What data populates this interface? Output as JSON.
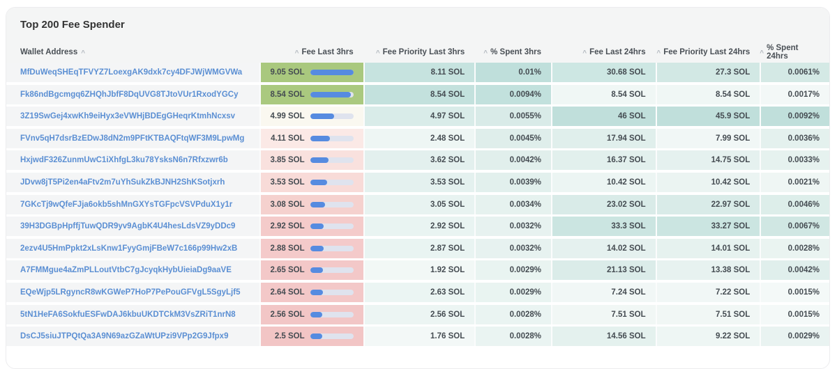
{
  "card": {
    "title": "Top 200 Fee Spender"
  },
  "sort_icon": "^",
  "colors": {
    "accent_bar_fill": "#568be0",
    "bar_track": "#dfe3ee",
    "wallet_link": "#5b8fd3",
    "header_text": "#4a5056",
    "value_text": "#454c52",
    "positive_green": "#a9c87e",
    "negative_red": "#f2c5c5",
    "teal_high": "#bfdfdb",
    "card_head_bg": "#f4f5f5"
  },
  "table": {
    "columns": [
      {
        "label": "Wallet Address"
      },
      {
        "label": "Fee Last 3hrs"
      },
      {
        "label": "Fee Priority Last 3hrs"
      },
      {
        "label": "% Spent 3hrs"
      },
      {
        "label": "Fee Last 24hrs"
      },
      {
        "label": "Fee Priority Last 24hrs"
      },
      {
        "label": "% Spent 24hrs"
      }
    ],
    "rows": [
      {
        "wallet": "MfDuWeqSHEqTFVYZ7LoexgAK9dxk7cy4DFJWjWMGVWa",
        "fee3": {
          "text": "9.05 SOL",
          "bg": "#a9c87e",
          "bar": 100
        },
        "fp3": {
          "text": "8.11 SOL",
          "bg": "#c6e3df"
        },
        "pct3": {
          "text": "0.01%",
          "bg": "#bfdfdb"
        },
        "fee24": {
          "text": "30.68 SOL",
          "bg": "#cde7e3"
        },
        "fp24": {
          "text": "27.3 SOL",
          "bg": "#d2e8e4"
        },
        "pct24": {
          "text": "0.0061%",
          "bg": "#d4e9e5"
        }
      },
      {
        "wallet": "Fk86ndBgcmgq6ZHQhJbfF8DqUVG8TJtoVUr1RxodYGCy",
        "fee3": {
          "text": "8.54 SOL",
          "bg": "#aac97f",
          "bar": 94
        },
        "fp3": {
          "text": "8.54 SOL",
          "bg": "#c3e1dd"
        },
        "pct3": {
          "text": "0.0094%",
          "bg": "#c2e1dd"
        },
        "fee24": {
          "text": "8.54 SOL",
          "bg": "#f0f7f5"
        },
        "fp24": {
          "text": "8.54 SOL",
          "bg": "#f0f7f5"
        },
        "pct24": {
          "text": "0.0017%",
          "bg": "#f3f8f7"
        }
      },
      {
        "wallet": "3Z19SwGej4xwKh9eiHyx3eVWHjBDEgGHeqrKtmhNcxsv",
        "fee3": {
          "text": "4.99 SOL",
          "bg": "#faf8f0",
          "bar": 55
        },
        "fp3": {
          "text": "4.97 SOL",
          "bg": "#d9ece9"
        },
        "pct3": {
          "text": "0.0055%",
          "bg": "#d9ebe8"
        },
        "fee24": {
          "text": "46 SOL",
          "bg": "#c0dfdb"
        },
        "fp24": {
          "text": "45.9 SOL",
          "bg": "#c0dfdb"
        },
        "pct24": {
          "text": "0.0092%",
          "bg": "#c0dfdb"
        }
      },
      {
        "wallet": "FVnv5qH7dsrBzEDwJ8dN2m9PFtKTBAQFtqWF3M9LpwMg",
        "fee3": {
          "text": "4.11 SOL",
          "bg": "#fbe9e6",
          "bar": 45
        },
        "fp3": {
          "text": "2.48 SOL",
          "bg": "#eef6f4"
        },
        "pct3": {
          "text": "0.0045%",
          "bg": "#dfeeeb"
        },
        "fee24": {
          "text": "17.94 SOL",
          "bg": "#e0efec"
        },
        "fp24": {
          "text": "7.99 SOL",
          "bg": "#f1f7f6"
        },
        "pct24": {
          "text": "0.0036%",
          "bg": "#e4f1ee"
        }
      },
      {
        "wallet": "HxjwdF326ZunmUwC1iXhfgL3ku78YsksN6n7Rfxzwr6b",
        "fee3": {
          "text": "3.85 SOL",
          "bg": "#f9e1de",
          "bar": 43
        },
        "fp3": {
          "text": "3.62 SOL",
          "bg": "#e3f0ee"
        },
        "pct3": {
          "text": "0.0042%",
          "bg": "#e1efec"
        },
        "fee24": {
          "text": "16.37 SOL",
          "bg": "#e2f0ed"
        },
        "fp24": {
          "text": "14.75 SOL",
          "bg": "#e5f1ef"
        },
        "pct24": {
          "text": "0.0033%",
          "bg": "#e6f2ef"
        }
      },
      {
        "wallet": "JDvw8jT5Pi2en4aFtv2m7uYhSukZkBJNH2ShKSotjxrh",
        "fee3": {
          "text": "3.53 SOL",
          "bg": "#f8dbd8",
          "bar": 39
        },
        "fp3": {
          "text": "3.53 SOL",
          "bg": "#e4f1ef"
        },
        "pct3": {
          "text": "0.0039%",
          "bg": "#e2f0ed"
        },
        "fee24": {
          "text": "10.42 SOL",
          "bg": "#ecf5f3"
        },
        "fp24": {
          "text": "10.42 SOL",
          "bg": "#ebf4f2"
        },
        "pct24": {
          "text": "0.0021%",
          "bg": "#eff6f4"
        }
      },
      {
        "wallet": "7GKcTj9wQfeFJja6okb5shMnGXYsTGFpcVSVPduX1y1r",
        "fee3": {
          "text": "3.08 SOL",
          "bg": "#f5d1ce",
          "bar": 34
        },
        "fp3": {
          "text": "3.05 SOL",
          "bg": "#e8f3f1"
        },
        "pct3": {
          "text": "0.0034%",
          "bg": "#e6f2ef"
        },
        "fee24": {
          "text": "23.02 SOL",
          "bg": "#d9ebe8"
        },
        "fp24": {
          "text": "22.97 SOL",
          "bg": "#d9ebe8"
        },
        "pct24": {
          "text": "0.0046%",
          "bg": "#ddeeea"
        }
      },
      {
        "wallet": "39H3DGBpHpffjTuwQDR9yv9AgbK4U4hesLdsVZ9yDDc9",
        "fee3": {
          "text": "2.92 SOL",
          "bg": "#f4cbca",
          "bar": 32
        },
        "fp3": {
          "text": "2.92 SOL",
          "bg": "#e9f4f2"
        },
        "pct3": {
          "text": "0.0032%",
          "bg": "#e7f2f0"
        },
        "fee24": {
          "text": "33.3 SOL",
          "bg": "#cbe5e1"
        },
        "fp24": {
          "text": "33.27 SOL",
          "bg": "#cbe5e1"
        },
        "pct24": {
          "text": "0.0067%",
          "bg": "#d0e7e3"
        }
      },
      {
        "wallet": "2ezv4U5HmPpkt2xLsKnw1FyyGmjFBeW7c166p99Hw2xB",
        "fee3": {
          "text": "2.88 SOL",
          "bg": "#f4caca",
          "bar": 32
        },
        "fp3": {
          "text": "2.87 SOL",
          "bg": "#e9f4f2"
        },
        "pct3": {
          "text": "0.0032%",
          "bg": "#e7f2f0"
        },
        "fee24": {
          "text": "14.02 SOL",
          "bg": "#e5f1ef"
        },
        "fp24": {
          "text": "14.01 SOL",
          "bg": "#e6f2ef"
        },
        "pct24": {
          "text": "0.0028%",
          "bg": "#eaf4f1"
        }
      },
      {
        "wallet": "A7FMMgue4aZmPLLoutVtbC7gJcyqkHybUieiaDg9aaVE",
        "fee3": {
          "text": "2.65 SOL",
          "bg": "#f3c8c8",
          "bar": 29
        },
        "fp3": {
          "text": "1.92 SOL",
          "bg": "#f2f8f6"
        },
        "pct3": {
          "text": "0.0029%",
          "bg": "#e9f4f1"
        },
        "fee24": {
          "text": "21.13 SOL",
          "bg": "#dbece9"
        },
        "fp24": {
          "text": "13.38 SOL",
          "bg": "#e7f2f0"
        },
        "pct24": {
          "text": "0.0042%",
          "bg": "#e0efec"
        }
      },
      {
        "wallet": "EQeWjp5LRgyncR8wKGWeP7HoP7PePouGFVgL5SgyLjf5",
        "fee3": {
          "text": "2.64 SOL",
          "bg": "#f3c8c8",
          "bar": 29
        },
        "fp3": {
          "text": "2.63 SOL",
          "bg": "#ebf5f3"
        },
        "pct3": {
          "text": "0.0029%",
          "bg": "#e9f4f1"
        },
        "fee24": {
          "text": "7.24 SOL",
          "bg": "#f1f7f6"
        },
        "fp24": {
          "text": "7.22 SOL",
          "bg": "#f1f7f6"
        },
        "pct24": {
          "text": "0.0015%",
          "bg": "#f4f9f8"
        }
      },
      {
        "wallet": "5tN1HeFA6SokfuESFwDAJ6kbuUKDTCkM3VsZRiT1nrN8",
        "fee3": {
          "text": "2.56 SOL",
          "bg": "#f2c6c6",
          "bar": 28
        },
        "fp3": {
          "text": "2.56 SOL",
          "bg": "#ecf5f3"
        },
        "pct3": {
          "text": "0.0028%",
          "bg": "#eaf4f2"
        },
        "fee24": {
          "text": "7.51 SOL",
          "bg": "#f1f7f5"
        },
        "fp24": {
          "text": "7.51 SOL",
          "bg": "#f1f7f5"
        },
        "pct24": {
          "text": "0.0015%",
          "bg": "#f4f9f8"
        }
      },
      {
        "wallet": "DsCJ5siuJTPQtQa3A9N69azGZaWtUPzi9VPp2G9Jfpx9",
        "fee3": {
          "text": "2.5 SOL",
          "bg": "#f2c5c5",
          "bar": 28
        },
        "fp3": {
          "text": "1.76 SOL",
          "bg": "#f3f8f7"
        },
        "pct3": {
          "text": "0.0028%",
          "bg": "#eaf4f2"
        },
        "fee24": {
          "text": "14.56 SOL",
          "bg": "#e4f1ee"
        },
        "fp24": {
          "text": "9.22 SOL",
          "bg": "#eef6f4"
        },
        "pct24": {
          "text": "0.0029%",
          "bg": "#e9f3f1"
        }
      }
    ]
  }
}
